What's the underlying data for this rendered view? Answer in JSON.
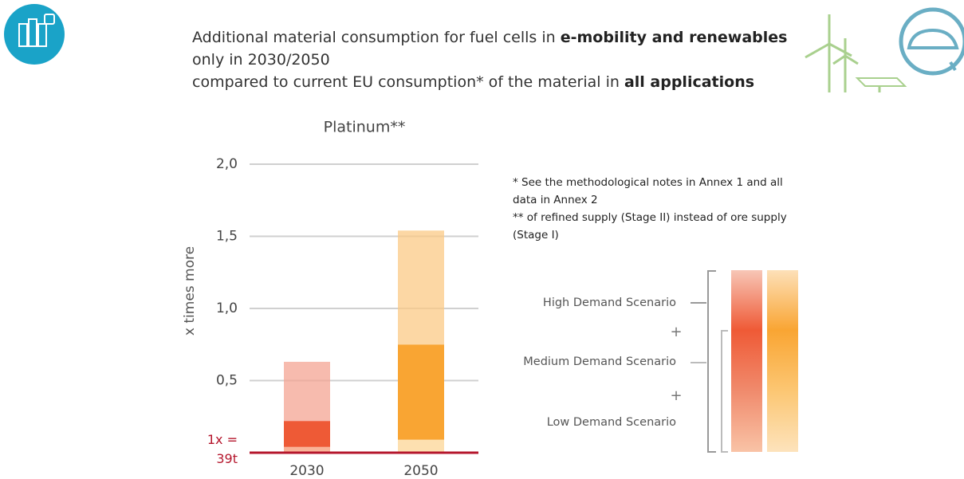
{
  "header": {
    "lines": [
      [
        "Additional material consumption for fuel cells in ",
        "e-mobility and renewables"
      ],
      [
        "only in 2030/2050"
      ],
      [
        "compared to current EU consumption* of the material in ",
        "all applications"
      ]
    ]
  },
  "notes": [
    "* See the methodological notes in Annex 1 and all data in Annex 2",
    "** of refined supply (Stage II) instead of ore supply (Stage I)"
  ],
  "chart_data": {
    "type": "stacked_bar",
    "title": "Platinum**",
    "y_label": "x times more",
    "categories": [
      "2030",
      "2050"
    ],
    "series": [
      {
        "name": "Low Demand Scenario",
        "colors": [
          "#f9b398",
          "#fde0b0"
        ],
        "values": [
          0.04,
          0.09
        ]
      },
      {
        "name": "Medium Demand Scenario",
        "colors": [
          "#ee5a36",
          "#f9a533"
        ],
        "values": [
          0.18,
          0.66
        ]
      },
      {
        "name": "High Demand Scenario",
        "colors": [
          "#f4a493",
          "#fbc985"
        ],
        "values": [
          0.41,
          0.79
        ]
      }
    ],
    "ylim": [
      0,
      2
    ],
    "yticks": [
      {
        "value": 0,
        "label": "1x = 39t"
      },
      {
        "value": 0.5,
        "label": "0,5"
      },
      {
        "value": 1,
        "label": "1,0"
      },
      {
        "value": 1.5,
        "label": "1,5"
      },
      {
        "value": 2,
        "label": "2,0"
      }
    ],
    "grid": true,
    "baseline_color": "#b5172d"
  }
}
